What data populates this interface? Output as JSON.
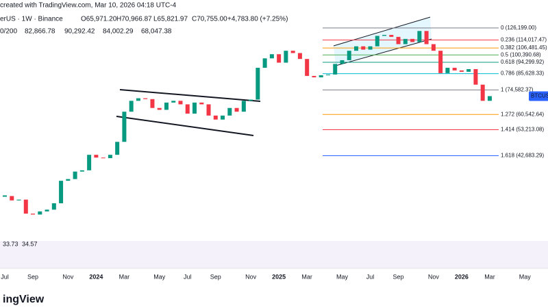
{
  "header": {
    "title": "created with TradingView.com, Mar 10, 2026 04:18 UTC-4",
    "symbol": "erUS · 1W · Binance",
    "ohlc": [
      "O65,971.20",
      "H70,966.87",
      "L65,821.97",
      "C70,755.00"
    ],
    "change": "+4,783.80 (+7.25%)",
    "ma_label": "0/200",
    "ma_values": [
      "82,866.78",
      "90,292.42",
      "84,002.29",
      "68,047.38"
    ]
  },
  "chart_data": {
    "type": "candlestick",
    "categories": [
      "Jul",
      null,
      null,
      null,
      "Sep",
      null,
      null,
      null,
      null,
      "Nov",
      null,
      null,
      null,
      "2024",
      null,
      null,
      null,
      "Mar",
      null,
      null,
      null,
      null,
      "May",
      null,
      null,
      null,
      "Jul",
      null,
      null,
      null,
      "Sep",
      null,
      null,
      null,
      null,
      "Nov",
      null,
      null,
      null,
      "2025",
      null,
      null,
      null,
      "Mar",
      null,
      null,
      null,
      null,
      "May",
      null,
      null,
      null,
      "Jul",
      null,
      null,
      null,
      "Sep",
      null,
      null,
      null,
      null,
      "Nov",
      null,
      null,
      null,
      "2026",
      null,
      null,
      null,
      "Mar",
      null,
      null,
      null,
      null,
      "May"
    ],
    "values": [
      30300,
      29200,
      29400,
      26100,
      25900,
      26600,
      27000,
      28500,
      34500,
      35000,
      37300,
      37700,
      43000,
      42000,
      41800,
      43000,
      48000,
      62000,
      68000,
      69500,
      69000,
      64000,
      63000,
      67000,
      68000,
      66000,
      61000,
      67000,
      66000,
      60000,
      58000,
      60000,
      64000,
      62000,
      68000,
      68700,
      90000,
      97500,
      101000,
      94000,
      104000,
      102000,
      97000,
      84000,
      83000,
      84500,
      85000,
      93000,
      96000,
      104000,
      108000,
      105000,
      108000,
      118000,
      119000,
      117000,
      110000,
      115000,
      112000,
      123000,
      110000,
      104000,
      86000,
      90000,
      88000,
      87000,
      89000,
      78000,
      68000,
      70755,
      null,
      null,
      null,
      null,
      null
    ],
    "ylim": [
      22200,
      160000
    ],
    "log_scale": true,
    "up_color": "#089981",
    "down_color": "#f23645",
    "price_tag": "BTCUSD",
    "levels": [
      {
        "label": "0 (126,199.00)",
        "value": 126199,
        "color": "#787b86"
      },
      {
        "label": "0.236 (114,017.47)",
        "value": 114017.47,
        "color": "#f23645"
      },
      {
        "label": "0.382 (106,481.45)",
        "value": 106481.45,
        "color": "#ff9800"
      },
      {
        "label": "0.5 (100,390.68)",
        "value": 100390.68,
        "color": "#4caf50"
      },
      {
        "label": "0.618 (94,299.92)",
        "value": 94299.92,
        "color": "#089981"
      },
      {
        "label": "0.786 (85,628.33)",
        "value": 85628.33,
        "color": "#00bcd4"
      },
      {
        "label": "1 (74,582.37)",
        "value": 74582.37,
        "color": "#787b86"
      },
      {
        "label": "1.272 (60,542.64)",
        "value": 60542.64,
        "color": "#ff9800"
      },
      {
        "label": "1.414 (53,213.08)",
        "value": 53213.08,
        "color": "#f23645"
      },
      {
        "label": "1.618 (42,683.29)",
        "value": 42683.29,
        "color": "#2962ff"
      }
    ],
    "rsi_labels": [
      "33.73",
      "34.57"
    ]
  },
  "watermark": "ingView"
}
